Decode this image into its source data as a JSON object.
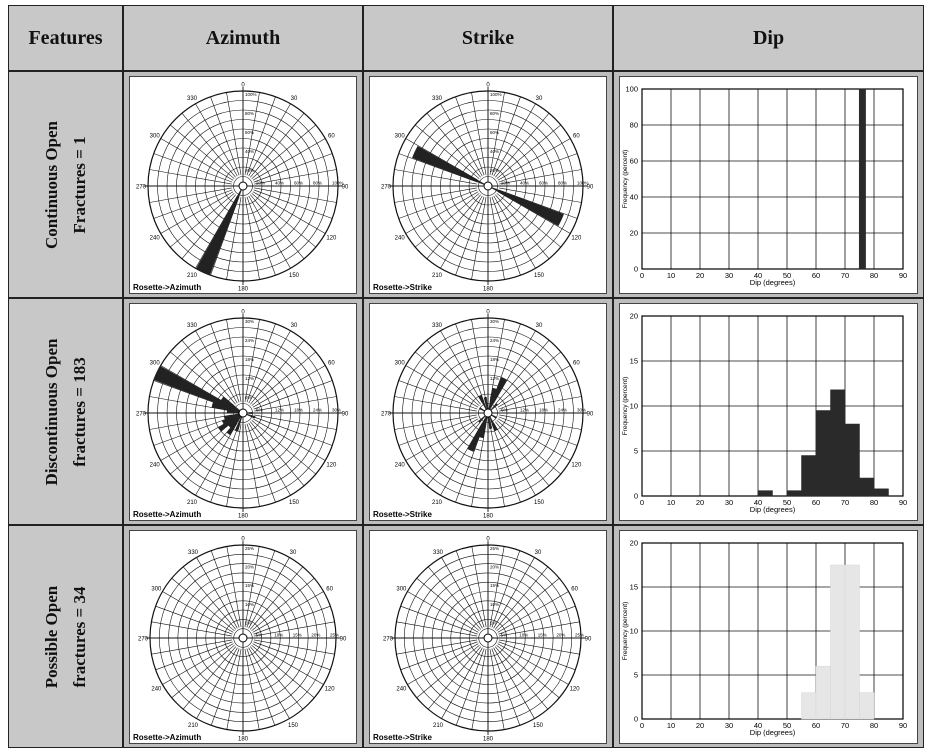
{
  "table": {
    "headers": [
      "Features",
      "Azimuth",
      "Strike",
      "Dip"
    ],
    "rows": [
      {
        "feature_line1": "Continuous Open",
        "feature_line2": "Fractures = 1",
        "azimuth_label": "Rosette->Azimuth",
        "strike_label": "Rosette->Strike"
      },
      {
        "feature_line1": "Discontinuous Open",
        "feature_line2": "fractures  = 183",
        "azimuth_label": "Rosette->Azimuth",
        "strike_label": "Rosette->Strike"
      },
      {
        "feature_line1": "Possible Open",
        "feature_line2": "fractures = 34",
        "azimuth_label": "Rosette->Azimuth",
        "strike_label": "Rosette->Strike"
      }
    ]
  },
  "rosette": {
    "bearing_labels": [
      "0",
      "30",
      "60",
      "90",
      "120",
      "150",
      "180",
      "210",
      "240",
      "270",
      "300",
      "330"
    ]
  },
  "colors": {
    "petal": "#222222",
    "bar": "#2a2a2a",
    "faint_bar": "#e6e6e6",
    "grid": "#111111"
  },
  "chart_data": [
    {
      "type": "rose",
      "id": "az-1",
      "ring_labels": [
        "20%",
        "40%",
        "60%",
        "80%",
        "100%"
      ],
      "petals": [
        {
          "angle": 205,
          "value": 100
        }
      ]
    },
    {
      "type": "rose",
      "id": "st-1",
      "ring_labels": [
        "20%",
        "40%",
        "60%",
        "80%",
        "100%"
      ],
      "petals": [
        {
          "angle": 115,
          "value": 85
        },
        {
          "angle": 295,
          "value": 85
        }
      ]
    },
    {
      "type": "bar",
      "id": "dip-1",
      "xlabel": "Dip (degrees)",
      "ylabel": "Frequency (percent)",
      "xlim": [
        0,
        90
      ],
      "ylim": [
        0,
        100
      ],
      "xticks": [
        0,
        10,
        20,
        30,
        40,
        50,
        60,
        70,
        80,
        90
      ],
      "yticks": [
        0,
        20,
        40,
        60,
        80,
        100
      ],
      "bins": [
        {
          "x": 76,
          "value": 100
        }
      ]
    },
    {
      "type": "rose",
      "id": "az-2",
      "ring_labels": [
        "6%",
        "12%",
        "18%",
        "24%",
        "30%"
      ],
      "petals": [
        {
          "angle": 295,
          "value": 30
        },
        {
          "angle": 285,
          "value": 10
        },
        {
          "angle": 275,
          "value": 5
        },
        {
          "angle": 305,
          "value": 8
        },
        {
          "angle": 255,
          "value": 6
        },
        {
          "angle": 245,
          "value": 7
        },
        {
          "angle": 235,
          "value": 9
        },
        {
          "angle": 225,
          "value": 6
        },
        {
          "angle": 215,
          "value": 8
        },
        {
          "angle": 200,
          "value": 6
        },
        {
          "angle": 110,
          "value": 4
        },
        {
          "angle": 90,
          "value": 3
        }
      ]
    },
    {
      "type": "rose",
      "id": "st-2",
      "ring_labels": [
        "6%",
        "12%",
        "18%",
        "24%",
        "30%"
      ],
      "petals": [
        {
          "angle": 25,
          "value": 12
        },
        {
          "angle": 205,
          "value": 13
        },
        {
          "angle": 15,
          "value": 8
        },
        {
          "angle": 195,
          "value": 8
        },
        {
          "angle": 335,
          "value": 6
        },
        {
          "angle": 155,
          "value": 6
        },
        {
          "angle": 350,
          "value": 5
        },
        {
          "angle": 170,
          "value": 5
        },
        {
          "angle": 45,
          "value": 4
        },
        {
          "angle": 225,
          "value": 4
        },
        {
          "angle": 120,
          "value": 3
        },
        {
          "angle": 300,
          "value": 3
        }
      ]
    },
    {
      "type": "bar",
      "id": "dip-2",
      "xlabel": "Dip (degrees)",
      "ylabel": "Frequency (percent)",
      "xlim": [
        0,
        90
      ],
      "ylim": [
        0,
        20
      ],
      "xticks": [
        0,
        10,
        20,
        30,
        40,
        50,
        60,
        70,
        80,
        90
      ],
      "yticks": [
        0,
        5,
        10,
        15,
        20
      ],
      "bins": [
        {
          "x": 42.5,
          "value": 0.6
        },
        {
          "x": 52.5,
          "value": 0.6
        },
        {
          "x": 57.5,
          "value": 4.5
        },
        {
          "x": 62.5,
          "value": 9.5
        },
        {
          "x": 67.5,
          "value": 11.8
        },
        {
          "x": 72.5,
          "value": 8.0
        },
        {
          "x": 77.5,
          "value": 2.0
        },
        {
          "x": 82.5,
          "value": 0.8
        }
      ]
    },
    {
      "type": "rose",
      "id": "az-3",
      "ring_labels": [
        "5%",
        "10%",
        "15%",
        "20%",
        "25%"
      ],
      "petals": []
    },
    {
      "type": "rose",
      "id": "st-3",
      "ring_labels": [
        "5%",
        "10%",
        "15%",
        "20%",
        "25%"
      ],
      "petals": []
    },
    {
      "type": "bar",
      "id": "dip-3",
      "xlabel": "Dip (degrees)",
      "ylabel": "Frequency (percent)",
      "xlim": [
        0,
        90
      ],
      "ylim": [
        0,
        20
      ],
      "xticks": [
        0,
        10,
        20,
        30,
        40,
        50,
        60,
        70,
        80,
        90
      ],
      "yticks": [
        0,
        5,
        10,
        15,
        20
      ],
      "faint": true,
      "bins": [
        {
          "x": 57.5,
          "value": 3
        },
        {
          "x": 62.5,
          "value": 6
        },
        {
          "x": 67.5,
          "value": 17.5
        },
        {
          "x": 72.5,
          "value": 17.5
        },
        {
          "x": 77.5,
          "value": 3
        }
      ]
    }
  ]
}
